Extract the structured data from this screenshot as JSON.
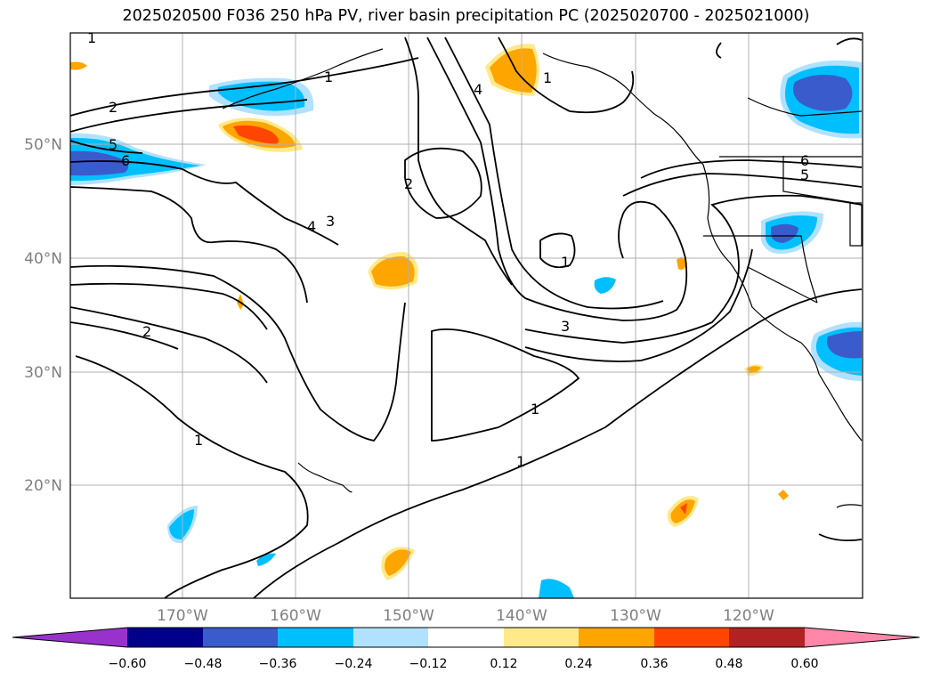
{
  "title": "2025020500 F036 250 hPa PV, river basin precipitation PC (2025020700 - 2025021000)",
  "map": {
    "lat_ticks": [
      "50°N",
      "40°N",
      "30°N",
      "20°N"
    ],
    "lon_ticks": [
      "170°W",
      "160°W",
      "150°W",
      "140°W",
      "130°W",
      "120°W"
    ],
    "pv_contour_labels": [
      "1",
      "1",
      "1",
      "1",
      "1",
      "1",
      "1",
      "2",
      "2",
      "2",
      "3",
      "3",
      "4",
      "4",
      "5",
      "5",
      "6",
      "6"
    ]
  },
  "colorbar": {
    "ticks": [
      "−0.60",
      "−0.48",
      "−0.36",
      "−0.24",
      "−0.12",
      "0.12",
      "0.24",
      "0.36",
      "0.48",
      "0.60"
    ],
    "colors": [
      "#9932cc",
      "#00008b",
      "#3a5bcc",
      "#00bfff",
      "#b0e2ff",
      "#ffffff",
      "#ffe98a",
      "#ffa500",
      "#ff4500",
      "#b22222",
      "#ff87aa"
    ]
  }
}
